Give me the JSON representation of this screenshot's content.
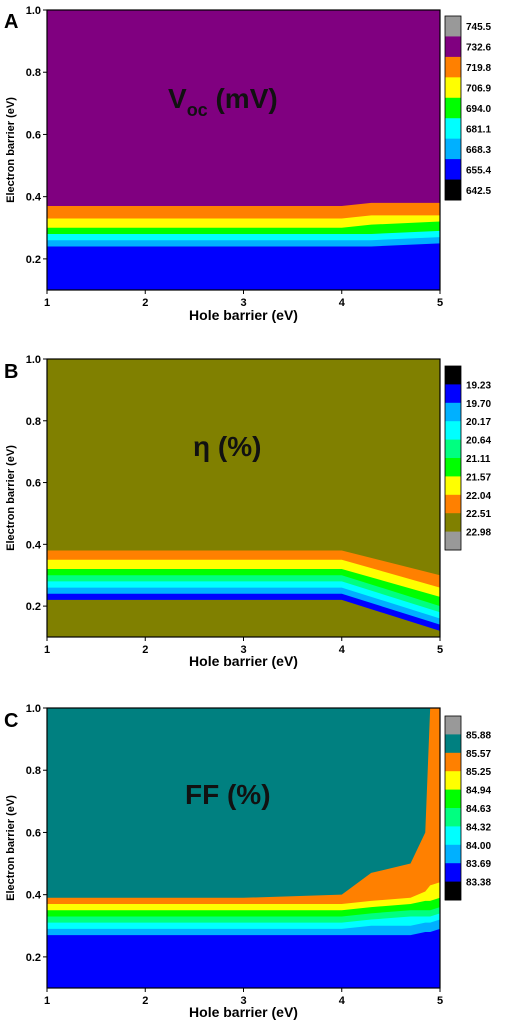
{
  "chart_data": [
    {
      "panel": "A",
      "type": "heatmap",
      "label_main": "V",
      "label_sub": "oc",
      "label_tail": " (mV)",
      "xlabel": "Hole barrier (eV)",
      "ylabel": "Electron barrier (eV)",
      "xlim": [
        1,
        5
      ],
      "ylim": [
        0.1,
        1.0
      ],
      "x_ticks": [
        "1",
        "2",
        "3",
        "4",
        "5"
      ],
      "y_ticks": [
        "0.2",
        "0.4",
        "0.6",
        "0.8",
        "1.0"
      ],
      "x_tick_values": [
        1,
        2,
        3,
        4,
        5
      ],
      "y_tick_values": [
        0.2,
        0.4,
        0.6,
        0.8,
        1.0
      ],
      "legend": [
        "745.5",
        "732.6",
        "719.8",
        "706.9",
        "694.0",
        "681.1",
        "668.3",
        "655.4",
        "642.5"
      ],
      "legend_colors": [
        "#999999",
        "#800080",
        "#ff8000",
        "#ffff00",
        "#00ff00",
        "#00ffff",
        "#00b0ff",
        "#0000ff",
        "#000000"
      ],
      "x": [
        1,
        2,
        3,
        4,
        4.3,
        5
      ],
      "boundaries": [
        {
          "color": "#800080",
          "y": [
            0.37,
            0.37,
            0.37,
            0.37,
            0.38,
            0.38
          ]
        },
        {
          "color": "#ff8000",
          "y": [
            0.33,
            0.33,
            0.33,
            0.33,
            0.34,
            0.34
          ]
        },
        {
          "color": "#ffff00",
          "y": [
            0.3,
            0.3,
            0.3,
            0.3,
            0.31,
            0.32
          ]
        },
        {
          "color": "#00ff00",
          "y": [
            0.28,
            0.28,
            0.28,
            0.28,
            0.28,
            0.29
          ]
        },
        {
          "color": "#00ffff",
          "y": [
            0.26,
            0.26,
            0.26,
            0.26,
            0.26,
            0.27
          ]
        },
        {
          "color": "#00b0ff",
          "y": [
            0.24,
            0.24,
            0.24,
            0.24,
            0.24,
            0.25
          ]
        },
        {
          "color": "#0000ff",
          "y": [
            0.22,
            0.22,
            0.22,
            0.22,
            0.22,
            0.23
          ]
        }
      ]
    },
    {
      "panel": "B",
      "type": "heatmap",
      "label_main": "η (%)",
      "label_sub": "",
      "label_tail": "",
      "xlabel": "Hole barrier (eV)",
      "ylabel": "Electron barrier (eV)",
      "xlim": [
        1,
        5
      ],
      "ylim": [
        0.1,
        1.0
      ],
      "x_ticks": [
        "1",
        "2",
        "3",
        "4",
        "5"
      ],
      "y_ticks": [
        "0.2",
        "0.4",
        "0.6",
        "0.8",
        "1.0"
      ],
      "x_tick_values": [
        1,
        2,
        3,
        4,
        5
      ],
      "y_tick_values": [
        0.2,
        0.4,
        0.6,
        0.8,
        1.0
      ],
      "legend": [
        "19.23",
        "19.70",
        "20.17",
        "20.64",
        "21.11",
        "21.57",
        "22.04",
        "22.51",
        "22.98"
      ],
      "legend_colors": [
        "#000000",
        "#0000ff",
        "#00b0ff",
        "#00ffff",
        "#00ff80",
        "#00ff00",
        "#ffff00",
        "#ff8000",
        "#808000",
        "#999999"
      ],
      "x": [
        1,
        2,
        3,
        4,
        5
      ],
      "boundaries": [
        {
          "color": "#808000",
          "y": [
            0.38,
            0.38,
            0.38,
            0.38,
            0.3
          ]
        },
        {
          "color": "#ff8000",
          "y": [
            0.35,
            0.35,
            0.35,
            0.35,
            0.26
          ]
        },
        {
          "color": "#ffff00",
          "y": [
            0.32,
            0.32,
            0.32,
            0.32,
            0.23
          ]
        },
        {
          "color": "#00ff00",
          "y": [
            0.3,
            0.3,
            0.3,
            0.3,
            0.2
          ]
        },
        {
          "color": "#00ff80",
          "y": [
            0.28,
            0.28,
            0.28,
            0.28,
            0.18
          ]
        },
        {
          "color": "#00ffff",
          "y": [
            0.26,
            0.26,
            0.26,
            0.26,
            0.16
          ]
        },
        {
          "color": "#00b0ff",
          "y": [
            0.24,
            0.24,
            0.24,
            0.24,
            0.14
          ]
        },
        {
          "color": "#0000ff",
          "y": [
            0.22,
            0.22,
            0.22,
            0.22,
            0.12
          ]
        }
      ]
    },
    {
      "panel": "C",
      "type": "heatmap",
      "label_main": "FF (%)",
      "label_sub": "",
      "label_tail": "",
      "xlabel": "Hole barrier (eV)",
      "ylabel": "Electron barrier (eV)",
      "xlim": [
        1,
        5
      ],
      "ylim": [
        0.1,
        1.0
      ],
      "x_ticks": [
        "1",
        "2",
        "3",
        "4",
        "5"
      ],
      "y_ticks": [
        "0.2",
        "0.4",
        "0.6",
        "0.8",
        "1.0"
      ],
      "x_tick_values": [
        1,
        2,
        3,
        4,
        5
      ],
      "y_tick_values": [
        0.2,
        0.4,
        0.6,
        0.8,
        1.0
      ],
      "legend": [
        "85.88",
        "85.57",
        "85.25",
        "84.94",
        "84.63",
        "84.32",
        "84.00",
        "83.69",
        "83.38"
      ],
      "legend_colors": [
        "#999999",
        "#008080",
        "#ff8000",
        "#ffff00",
        "#00ff00",
        "#00ff80",
        "#00ffff",
        "#00b0ff",
        "#0000ff",
        "#000000"
      ],
      "x": [
        1,
        2,
        3,
        4,
        4.3,
        4.7,
        4.85,
        4.9,
        5
      ],
      "boundaries": [
        {
          "color": "#008080",
          "y": [
            0.39,
            0.39,
            0.39,
            0.4,
            0.47,
            0.5,
            0.6,
            1.0,
            1.0
          ]
        },
        {
          "color": "#ff8000",
          "y": [
            0.37,
            0.37,
            0.37,
            0.37,
            0.38,
            0.39,
            0.41,
            0.43,
            0.44
          ]
        },
        {
          "color": "#ffff00",
          "y": [
            0.35,
            0.35,
            0.35,
            0.35,
            0.36,
            0.37,
            0.38,
            0.38,
            0.39
          ]
        },
        {
          "color": "#00ff00",
          "y": [
            0.33,
            0.33,
            0.33,
            0.33,
            0.34,
            0.35,
            0.35,
            0.35,
            0.36
          ]
        },
        {
          "color": "#00ff80",
          "y": [
            0.31,
            0.31,
            0.31,
            0.31,
            0.32,
            0.33,
            0.33,
            0.33,
            0.34
          ]
        },
        {
          "color": "#00ffff",
          "y": [
            0.29,
            0.29,
            0.29,
            0.29,
            0.3,
            0.3,
            0.31,
            0.31,
            0.32
          ]
        },
        {
          "color": "#00b0ff",
          "y": [
            0.27,
            0.27,
            0.27,
            0.27,
            0.27,
            0.27,
            0.28,
            0.28,
            0.29
          ]
        },
        {
          "color": "#0000ff",
          "y": [
            0.23,
            0.23,
            0.23,
            0.23,
            0.23,
            0.23,
            0.24,
            0.24,
            0.25
          ]
        }
      ]
    }
  ]
}
